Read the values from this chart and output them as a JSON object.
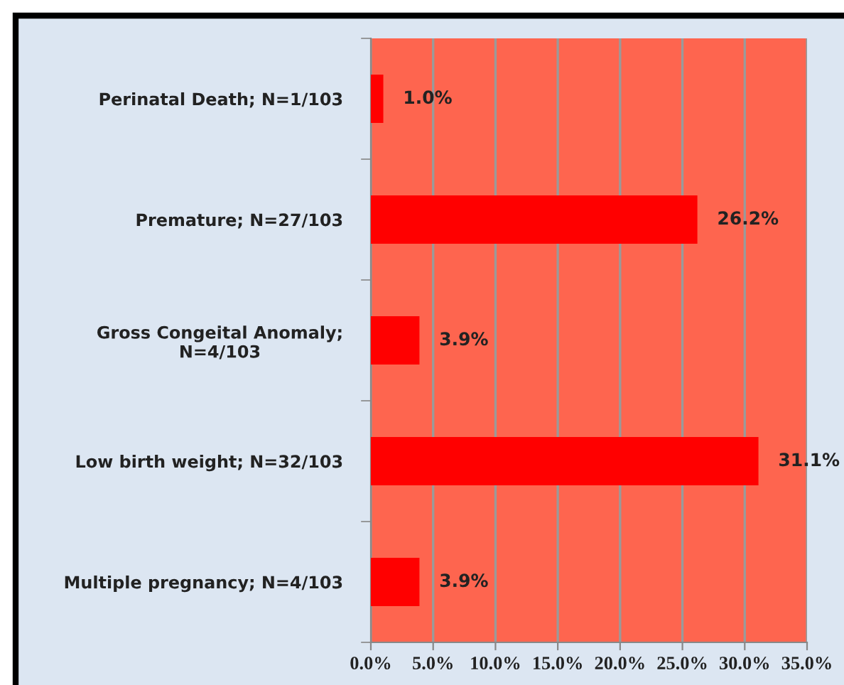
{
  "chart_data": {
    "type": "bar",
    "orientation": "horizontal",
    "categories": [
      "Perinatal Death; N=1/103",
      "Premature; N=27/103",
      "Gross Congeital Anomaly;\nN=4/103",
      "Low birth weight; N=32/103",
      "Multiple pregnancy; N=4/103"
    ],
    "values": [
      1.0,
      26.2,
      3.9,
      31.1,
      3.9
    ],
    "color": "#ff0000",
    "value_labels": [
      "1.0%",
      "26.2%",
      "3.9%",
      "31.1%",
      "3.9%"
    ],
    "xlim": [
      0,
      35
    ],
    "xticks": [
      {
        "value": 0,
        "label": "0.0%"
      },
      {
        "value": 5,
        "label": "5.0%"
      },
      {
        "value": 10,
        "label": "10.0%"
      },
      {
        "value": 15,
        "label": "15.0%"
      },
      {
        "value": 20,
        "label": "20.0%"
      },
      {
        "value": 25,
        "label": "25.0%"
      },
      {
        "value": 30,
        "label": "30.0%"
      },
      {
        "value": 35,
        "label": "35.0%"
      }
    ],
    "grid": "x",
    "legend": false
  }
}
